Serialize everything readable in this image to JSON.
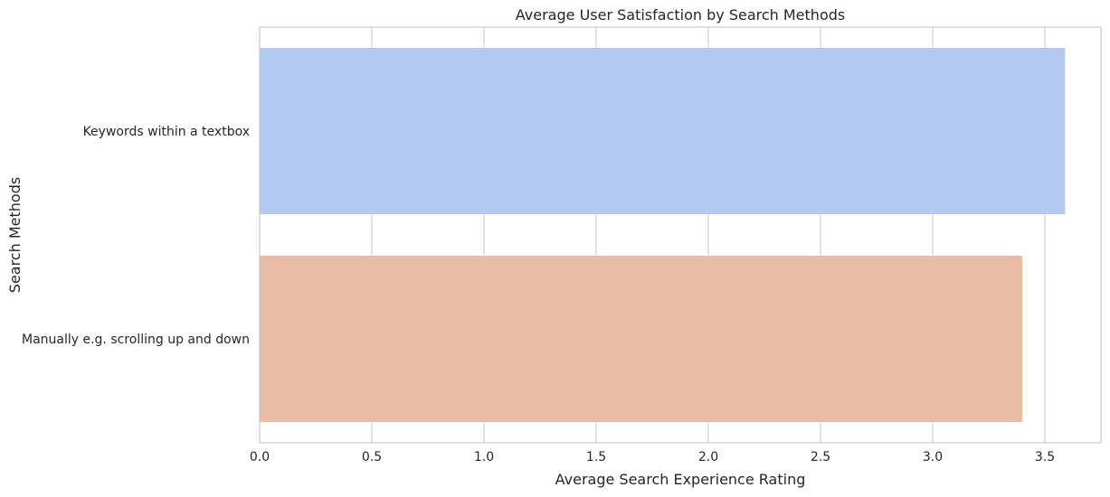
{
  "chart_data": {
    "type": "bar",
    "orientation": "horizontal",
    "title": "Average User Satisfaction by Search Methods",
    "xlabel": "Average Search Experience Rating",
    "ylabel": "Search Methods",
    "categories": [
      "Keywords within a textbox",
      "Manually e.g. scrolling up and down"
    ],
    "values": [
      3.59,
      3.4
    ],
    "xlim": [
      0,
      3.75
    ],
    "xticks": [
      0.0,
      0.5,
      1.0,
      1.5,
      2.0,
      2.5,
      3.0,
      3.5
    ],
    "xtick_labels": [
      "0.0",
      "0.5",
      "1.0",
      "1.5",
      "2.0",
      "2.5",
      "3.0",
      "3.5"
    ],
    "grid": true,
    "colors": [
      "#b4c9f2",
      "#eabca6"
    ],
    "style": "whitegrid"
  }
}
